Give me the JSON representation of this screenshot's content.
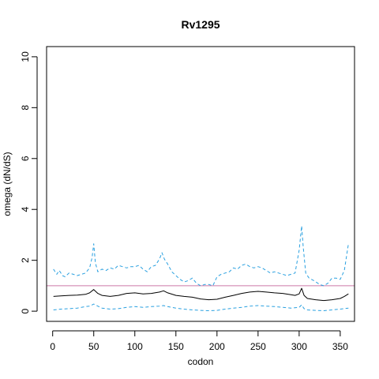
{
  "chart_data": {
    "type": "line",
    "title": "Rv1295",
    "xlabel": "codon",
    "ylabel": "omega (dN/dS)",
    "xlim": [
      -7.4,
      367.4
    ],
    "ylim": [
      -0.4,
      10.4
    ],
    "x_ticks": [
      0,
      50,
      100,
      150,
      200,
      250,
      300,
      350
    ],
    "y_ticks": [
      0,
      2,
      4,
      6,
      8,
      10
    ],
    "grid": false,
    "legend": "none",
    "reference_line": {
      "y": 1,
      "color": "#cc79a7"
    },
    "colors": {
      "estimate": "#000000",
      "interval": "#29a0e0",
      "reference": "#cc79a7",
      "frame": "#000000"
    },
    "series": [
      {
        "role": "upper-interval",
        "style": "dashed",
        "x": [
          1,
          5,
          8,
          12,
          15,
          20,
          25,
          30,
          35,
          40,
          45,
          48,
          50,
          52,
          55,
          60,
          65,
          70,
          75,
          80,
          85,
          90,
          95,
          100,
          105,
          110,
          115,
          120,
          125,
          130,
          133,
          136,
          140,
          145,
          150,
          155,
          160,
          165,
          170,
          175,
          180,
          185,
          190,
          195,
          200,
          205,
          210,
          215,
          220,
          225,
          230,
          235,
          240,
          245,
          250,
          255,
          260,
          265,
          270,
          275,
          280,
          285,
          290,
          295,
          300,
          303,
          305,
          308,
          312,
          318,
          325,
          330,
          335,
          340,
          345,
          350,
          355,
          360
        ],
        "y": [
          1.65,
          1.45,
          1.6,
          1.4,
          1.35,
          1.5,
          1.45,
          1.4,
          1.45,
          1.5,
          1.7,
          2.1,
          2.65,
          1.9,
          1.55,
          1.65,
          1.6,
          1.7,
          1.65,
          1.8,
          1.75,
          1.7,
          1.75,
          1.75,
          1.8,
          1.65,
          1.55,
          1.75,
          1.8,
          2.05,
          2.3,
          2.05,
          1.85,
          1.55,
          1.4,
          1.25,
          1.15,
          1.2,
          1.3,
          1.1,
          1.0,
          1.05,
          1.05,
          1.0,
          1.35,
          1.45,
          1.5,
          1.55,
          1.7,
          1.65,
          1.8,
          1.85,
          1.75,
          1.7,
          1.75,
          1.7,
          1.6,
          1.5,
          1.55,
          1.5,
          1.45,
          1.4,
          1.45,
          1.5,
          2.4,
          3.35,
          2.5,
          1.5,
          1.3,
          1.2,
          1.05,
          1.0,
          1.1,
          1.3,
          1.3,
          1.25,
          1.6,
          2.65
        ]
      },
      {
        "role": "estimate",
        "style": "solid",
        "x": [
          1,
          10,
          20,
          30,
          40,
          45,
          50,
          55,
          60,
          70,
          80,
          90,
          100,
          110,
          120,
          130,
          135,
          140,
          150,
          160,
          170,
          180,
          190,
          200,
          210,
          220,
          230,
          240,
          250,
          260,
          270,
          280,
          290,
          295,
          300,
          303,
          306,
          310,
          320,
          330,
          340,
          350,
          355,
          360
        ],
        "y": [
          0.58,
          0.6,
          0.62,
          0.63,
          0.66,
          0.72,
          0.85,
          0.7,
          0.62,
          0.58,
          0.62,
          0.7,
          0.72,
          0.68,
          0.7,
          0.75,
          0.8,
          0.72,
          0.62,
          0.58,
          0.55,
          0.48,
          0.45,
          0.47,
          0.55,
          0.62,
          0.7,
          0.75,
          0.78,
          0.75,
          0.72,
          0.7,
          0.65,
          0.62,
          0.68,
          0.9,
          0.62,
          0.5,
          0.45,
          0.42,
          0.45,
          0.5,
          0.58,
          0.68
        ]
      },
      {
        "role": "lower-interval",
        "style": "dashed",
        "x": [
          1,
          10,
          20,
          30,
          40,
          45,
          50,
          55,
          60,
          70,
          80,
          90,
          100,
          110,
          120,
          130,
          135,
          140,
          150,
          160,
          170,
          180,
          190,
          200,
          210,
          220,
          230,
          240,
          250,
          260,
          270,
          280,
          290,
          300,
          303,
          306,
          310,
          320,
          330,
          340,
          350,
          360
        ],
        "y": [
          0.05,
          0.08,
          0.1,
          0.12,
          0.18,
          0.2,
          0.28,
          0.2,
          0.12,
          0.08,
          0.1,
          0.15,
          0.18,
          0.15,
          0.18,
          0.2,
          0.22,
          0.18,
          0.12,
          0.08,
          0.05,
          0.03,
          0.02,
          0.03,
          0.08,
          0.12,
          0.15,
          0.2,
          0.22,
          0.2,
          0.18,
          0.15,
          0.12,
          0.15,
          0.25,
          0.1,
          0.05,
          0.03,
          0.02,
          0.05,
          0.08,
          0.12
        ]
      }
    ]
  }
}
